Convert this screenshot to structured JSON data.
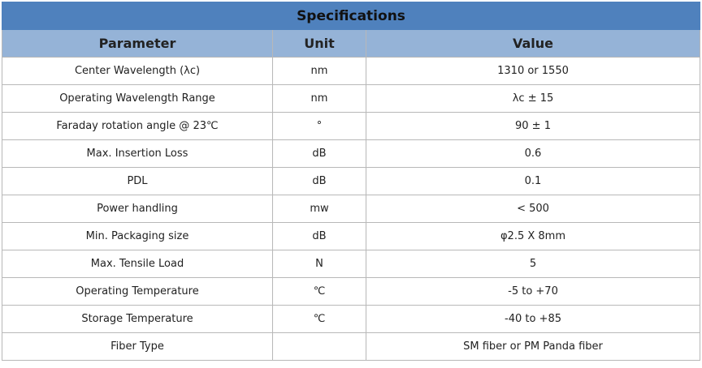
{
  "table": {
    "title": "Specifications",
    "header": [
      "Parameter",
      "Unit",
      "Value"
    ],
    "rows": [
      {
        "parameter": "Center Wavelength (λc)",
        "unit": "nm",
        "value": "1310 or 1550"
      },
      {
        "parameter": "Operating Wavelength Range",
        "unit": "nm",
        "value": "λc ± 15"
      },
      {
        "parameter": "Faraday rotation angle @ 23℃",
        "unit": "°",
        "value": "90 ± 1"
      },
      {
        "parameter": "Max. Insertion Loss",
        "unit": "dB",
        "value": "0.6"
      },
      {
        "parameter": "PDL",
        "unit": "dB",
        "value": "0.1"
      },
      {
        "parameter": "Power handling",
        "unit": "mw",
        "value": "< 500"
      },
      {
        "parameter": "Min. Packaging size",
        "unit": "dB",
        "value": "φ2.5 X 8mm"
      },
      {
        "parameter": "Max. Tensile Load",
        "unit": "N",
        "value": "5"
      },
      {
        "parameter": "Operating Temperature",
        "unit": "℃",
        "value": "-5 to +70"
      },
      {
        "parameter": "Storage Temperature",
        "unit": "℃",
        "value": "-40 to +85"
      },
      {
        "parameter": "Fiber Type",
        "value": "SM fiber or PM Panda fiber"
      }
    ]
  }
}
